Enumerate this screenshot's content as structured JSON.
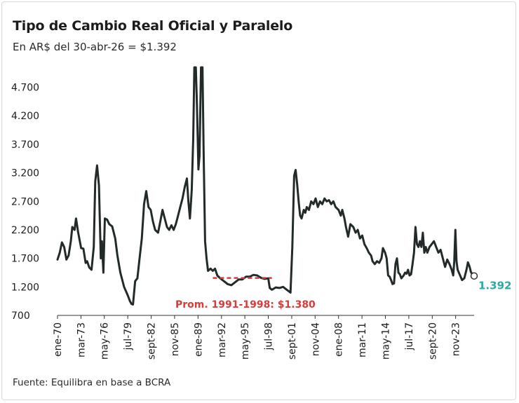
{
  "header": {
    "title": "Tipo de Cambio Real Oficial y Paralelo",
    "subtitle": "En AR$ del 30-abr-26 = $1.392"
  },
  "footer": {
    "source": "Fuente: Equilibra en base a BCRA"
  },
  "colors": {
    "line": "#222a2a",
    "average": "#d93a3a",
    "last_value": "#2aa9a4",
    "text": "#1c1c1c"
  },
  "chart_data": {
    "type": "line",
    "title": "Tipo de Cambio Real Oficial y Paralelo",
    "subtitle": "En AR$ del 30-abr-26 = $1.392",
    "xlabel": "",
    "ylabel": "",
    "ylim": [
      700,
      5100
    ],
    "xlim": [
      1970.0,
      2026.33
    ],
    "y_ticks": [
      700,
      1200,
      1700,
      2200,
      2700,
      3200,
      3700,
      4200,
      4700
    ],
    "y_tick_labels": [
      "700",
      "1.200",
      "1.700",
      "2.200",
      "2.700",
      "3.200",
      "3.700",
      "4.200",
      "4.700"
    ],
    "x_ticks": [
      1970.0,
      1973.17,
      1976.33,
      1979.5,
      1982.67,
      1985.83,
      1989.0,
      1992.17,
      1995.33,
      1998.5,
      2001.67,
      2004.83,
      2008.0,
      2011.17,
      2014.33,
      2017.5,
      2020.67,
      2023.83
    ],
    "x_tick_labels": [
      "ene-70",
      "mar-73",
      "may-76",
      "jul-79",
      "sept-82",
      "nov-85",
      "ene-89",
      "mar-92",
      "may-95",
      "jul-98",
      "sept-01",
      "nov-04",
      "ene-08",
      "mar-11",
      "may-14",
      "jul-17",
      "sept-20",
      "nov-23"
    ],
    "grid": false,
    "legend": "none",
    "series": [
      {
        "points": [
          [
            1970.0,
            1680
          ],
          [
            1970.3,
            1800
          ],
          [
            1970.6,
            1980
          ],
          [
            1970.9,
            1900
          ],
          [
            1971.2,
            1680
          ],
          [
            1971.5,
            1750
          ],
          [
            1971.8,
            2000
          ],
          [
            1972.0,
            2250
          ],
          [
            1972.3,
            2200
          ],
          [
            1972.5,
            2400
          ],
          [
            1972.8,
            2150
          ],
          [
            1973.2,
            1880
          ],
          [
            1973.5,
            1870
          ],
          [
            1973.8,
            1620
          ],
          [
            1974.0,
            1650
          ],
          [
            1974.3,
            1540
          ],
          [
            1974.6,
            1500
          ],
          [
            1974.9,
            1900
          ],
          [
            1975.1,
            3050
          ],
          [
            1975.35,
            3330
          ],
          [
            1975.6,
            2980
          ],
          [
            1975.85,
            1700
          ],
          [
            1976.0,
            2000
          ],
          [
            1976.2,
            1450
          ],
          [
            1976.4,
            2400
          ],
          [
            1976.7,
            2380
          ],
          [
            1977.0,
            2300
          ],
          [
            1977.4,
            2260
          ],
          [
            1977.8,
            2050
          ],
          [
            1978.1,
            1750
          ],
          [
            1978.5,
            1450
          ],
          [
            1979.0,
            1200
          ],
          [
            1979.5,
            1050
          ],
          [
            1979.8,
            950
          ],
          [
            1980.0,
            900
          ],
          [
            1980.2,
            890
          ],
          [
            1980.5,
            1300
          ],
          [
            1980.8,
            1350
          ],
          [
            1981.1,
            1700
          ],
          [
            1981.4,
            2050
          ],
          [
            1981.7,
            2650
          ],
          [
            1982.0,
            2880
          ],
          [
            1982.3,
            2600
          ],
          [
            1982.6,
            2550
          ],
          [
            1982.9,
            2350
          ],
          [
            1983.2,
            2200
          ],
          [
            1983.6,
            2150
          ],
          [
            1983.9,
            2350
          ],
          [
            1984.2,
            2550
          ],
          [
            1984.5,
            2400
          ],
          [
            1984.8,
            2250
          ],
          [
            1985.1,
            2200
          ],
          [
            1985.4,
            2280
          ],
          [
            1985.7,
            2200
          ],
          [
            1986.0,
            2300
          ],
          [
            1986.3,
            2450
          ],
          [
            1986.6,
            2600
          ],
          [
            1986.9,
            2750
          ],
          [
            1987.2,
            2950
          ],
          [
            1987.5,
            3100
          ],
          [
            1987.7,
            2700
          ],
          [
            1987.9,
            2400
          ],
          [
            1988.15,
            2900
          ],
          [
            1988.35,
            3800
          ],
          [
            1988.5,
            5050
          ],
          [
            1988.7,
            5050
          ],
          [
            1988.85,
            4400
          ],
          [
            1989.05,
            3260
          ],
          [
            1989.2,
            3500
          ],
          [
            1989.4,
            5050
          ],
          [
            1989.6,
            5050
          ],
          [
            1989.75,
            3600
          ],
          [
            1989.95,
            2000
          ],
          [
            1990.15,
            1700
          ],
          [
            1990.35,
            1480
          ],
          [
            1990.7,
            1520
          ],
          [
            1991.0,
            1480
          ],
          [
            1991.3,
            1520
          ],
          [
            1991.6,
            1400
          ],
          [
            1992.0,
            1350
          ],
          [
            1992.5,
            1300
          ],
          [
            1993.0,
            1250
          ],
          [
            1993.5,
            1230
          ],
          [
            1994.0,
            1280
          ],
          [
            1994.5,
            1330
          ],
          [
            1995.0,
            1330
          ],
          [
            1995.5,
            1380
          ],
          [
            1996.0,
            1380
          ],
          [
            1996.5,
            1410
          ],
          [
            1997.0,
            1400
          ],
          [
            1997.5,
            1360
          ],
          [
            1998.0,
            1340
          ],
          [
            1998.5,
            1350
          ],
          [
            1998.7,
            1180
          ],
          [
            1999.0,
            1150
          ],
          [
            1999.5,
            1190
          ],
          [
            2000.0,
            1180
          ],
          [
            2000.5,
            1200
          ],
          [
            2001.0,
            1150
          ],
          [
            2001.3,
            1120
          ],
          [
            2001.5,
            1100
          ],
          [
            2001.75,
            1900
          ],
          [
            2002.0,
            3150
          ],
          [
            2002.2,
            3250
          ],
          [
            2002.4,
            3000
          ],
          [
            2002.6,
            2700
          ],
          [
            2002.8,
            2450
          ],
          [
            2003.0,
            2400
          ],
          [
            2003.3,
            2550
          ],
          [
            2003.5,
            2500
          ],
          [
            2003.7,
            2600
          ],
          [
            2004.0,
            2550
          ],
          [
            2004.3,
            2700
          ],
          [
            2004.6,
            2650
          ],
          [
            2004.9,
            2750
          ],
          [
            2005.2,
            2600
          ],
          [
            2005.5,
            2700
          ],
          [
            2005.8,
            2650
          ],
          [
            2006.1,
            2750
          ],
          [
            2006.4,
            2700
          ],
          [
            2006.7,
            2720
          ],
          [
            2007.0,
            2650
          ],
          [
            2007.3,
            2700
          ],
          [
            2007.6,
            2600
          ],
          [
            2008.0,
            2550
          ],
          [
            2008.3,
            2450
          ],
          [
            2008.5,
            2550
          ],
          [
            2008.8,
            2400
          ],
          [
            2009.0,
            2250
          ],
          [
            2009.3,
            2080
          ],
          [
            2009.6,
            2300
          ],
          [
            2010.0,
            2250
          ],
          [
            2010.3,
            2150
          ],
          [
            2010.6,
            2200
          ],
          [
            2010.9,
            2050
          ],
          [
            2011.2,
            2100
          ],
          [
            2011.5,
            1950
          ],
          [
            2011.8,
            1880
          ],
          [
            2012.1,
            1800
          ],
          [
            2012.4,
            1750
          ],
          [
            2012.6,
            1650
          ],
          [
            2012.9,
            1600
          ],
          [
            2013.2,
            1650
          ],
          [
            2013.5,
            1620
          ],
          [
            2013.8,
            1700
          ],
          [
            2014.0,
            1880
          ],
          [
            2014.3,
            1800
          ],
          [
            2014.5,
            1700
          ],
          [
            2014.7,
            1400
          ],
          [
            2014.9,
            1380
          ],
          [
            2015.1,
            1320
          ],
          [
            2015.3,
            1250
          ],
          [
            2015.5,
            1260
          ],
          [
            2015.7,
            1600
          ],
          [
            2015.9,
            1700
          ],
          [
            2016.1,
            1450
          ],
          [
            2016.3,
            1420
          ],
          [
            2016.5,
            1350
          ],
          [
            2016.8,
            1400
          ],
          [
            2017.0,
            1450
          ],
          [
            2017.2,
            1430
          ],
          [
            2017.4,
            1500
          ],
          [
            2017.6,
            1400
          ],
          [
            2017.8,
            1420
          ],
          [
            2018.0,
            1600
          ],
          [
            2018.2,
            1800
          ],
          [
            2018.4,
            2250
          ],
          [
            2018.6,
            1950
          ],
          [
            2018.8,
            1900
          ],
          [
            2019.0,
            2000
          ],
          [
            2019.2,
            1900
          ],
          [
            2019.4,
            2150
          ],
          [
            2019.6,
            1800
          ],
          [
            2019.8,
            1900
          ],
          [
            2020.0,
            1800
          ],
          [
            2020.3,
            1900
          ],
          [
            2020.6,
            1950
          ],
          [
            2020.9,
            2000
          ],
          [
            2021.2,
            1900
          ],
          [
            2021.5,
            1800
          ],
          [
            2021.8,
            1850
          ],
          [
            2022.1,
            1700
          ],
          [
            2022.4,
            1550
          ],
          [
            2022.7,
            1680
          ],
          [
            2023.0,
            1600
          ],
          [
            2023.3,
            1500
          ],
          [
            2023.5,
            1400
          ],
          [
            2023.65,
            1650
          ],
          [
            2023.8,
            2200
          ],
          [
            2023.95,
            1650
          ],
          [
            2024.1,
            1500
          ],
          [
            2024.3,
            1440
          ],
          [
            2024.5,
            1380
          ],
          [
            2024.7,
            1320
          ],
          [
            2025.0,
            1350
          ],
          [
            2025.3,
            1500
          ],
          [
            2025.5,
            1630
          ],
          [
            2025.7,
            1560
          ],
          [
            2025.9,
            1460
          ],
          [
            2026.1,
            1420
          ],
          [
            2026.33,
            1392
          ]
        ]
      }
    ],
    "average": {
      "label": "Prom. 1991-1998: $1.380",
      "from": 1991.0,
      "to": 1998.99,
      "value": 1380
    },
    "last_point": {
      "x": 2026.33,
      "y": 1392,
      "label": "1.392"
    }
  }
}
